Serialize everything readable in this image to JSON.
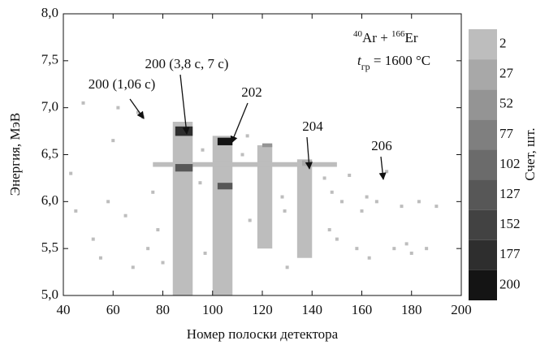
{
  "chart_data": {
    "type": "heatmap",
    "xlabel": "Номер полоски детектора",
    "ylabel": "Энергия, МэВ",
    "xlim": [
      40,
      200
    ],
    "xticks": [
      40,
      60,
      80,
      100,
      120,
      140,
      160,
      180,
      200
    ],
    "ylim": [
      5,
      8
    ],
    "yticks": [
      {
        "value": 5,
        "label": "5,0"
      },
      {
        "value": 5.5,
        "label": "5,5"
      },
      {
        "value": 6,
        "label": "6,0"
      },
      {
        "value": 6.5,
        "label": "6,5"
      },
      {
        "value": 7,
        "label": "7,0"
      },
      {
        "value": 7.5,
        "label": "7,5"
      },
      {
        "value": 8,
        "label": "8,0"
      }
    ],
    "colorbar": {
      "label": "Счет, шт.",
      "ticks": [
        2,
        27,
        52,
        77,
        102,
        127,
        152,
        177,
        200
      ],
      "colors": [
        "#bdbdbd",
        "#a8a8a8",
        "#949494",
        "#7f7f7f",
        "#6b6b6b",
        "#575757",
        "#424242",
        "#2e2e2e",
        "#141414"
      ]
    },
    "reaction": [
      "40",
      "Ar + ",
      "166",
      "Er"
    ],
    "temperature": [
      "t",
      "гр",
      " = 1600 °C"
    ],
    "annotations": [
      "200 (1,06 с)",
      "200 (3,8 с, 7 с)",
      "202",
      "204",
      "206"
    ],
    "regions": [
      {
        "x": [
          84,
          92
        ],
        "y": [
          5,
          6.85
        ],
        "count": 10
      },
      {
        "x": [
          100,
          108
        ],
        "y": [
          5,
          6.7
        ],
        "count": 10
      },
      {
        "x": [
          118,
          124
        ],
        "y": [
          5.5,
          6.6
        ],
        "count": 10
      },
      {
        "x": [
          134,
          140
        ],
        "y": [
          5.4,
          6.45
        ],
        "count": 5
      },
      {
        "x": [
          76,
          150
        ],
        "y": [
          6.37,
          6.42
        ],
        "count": 5
      },
      {
        "x": [
          85,
          92
        ],
        "y": [
          6.7,
          6.8
        ],
        "count": 180
      },
      {
        "x": [
          85,
          92
        ],
        "y": [
          6.32,
          6.4
        ],
        "count": 150
      },
      {
        "x": [
          102,
          108
        ],
        "y": [
          6.6,
          6.68
        ],
        "count": 200
      },
      {
        "x": [
          102,
          108
        ],
        "y": [
          6.13,
          6.2
        ],
        "count": 150
      },
      {
        "x": [
          120,
          124
        ],
        "y": [
          6.58,
          6.62
        ],
        "count": 60
      },
      {
        "x": [
          136,
          140
        ],
        "y": [
          6.38,
          6.44
        ],
        "count": 40
      }
    ],
    "noise": {
      "x": [
        45,
        48,
        52,
        55,
        58,
        62,
        65,
        68,
        70,
        72,
        74,
        76,
        78,
        80,
        95,
        97,
        112,
        115,
        128,
        130,
        145,
        148,
        150,
        152,
        155,
        158,
        160,
        163,
        166,
        170,
        173,
        176,
        180,
        183,
        186,
        190,
        43,
        60,
        96,
        114,
        129,
        147,
        162,
        178
      ],
      "y": [
        5.9,
        7.05,
        5.6,
        5.4,
        6.0,
        7.0,
        5.85,
        5.3,
        6.95,
        6.9,
        5.5,
        6.1,
        5.7,
        5.35,
        6.2,
        5.45,
        6.5,
        5.8,
        6.05,
        5.3,
        6.25,
        6.1,
        5.6,
        6.0,
        6.28,
        5.5,
        5.9,
        5.4,
        6.0,
        6.32,
        5.5,
        5.95,
        5.45,
        6.0,
        5.5,
        5.95,
        6.3,
        6.65,
        6.55,
        6.7,
        5.9,
        5.7,
        6.05,
        5.55
      ]
    }
  }
}
